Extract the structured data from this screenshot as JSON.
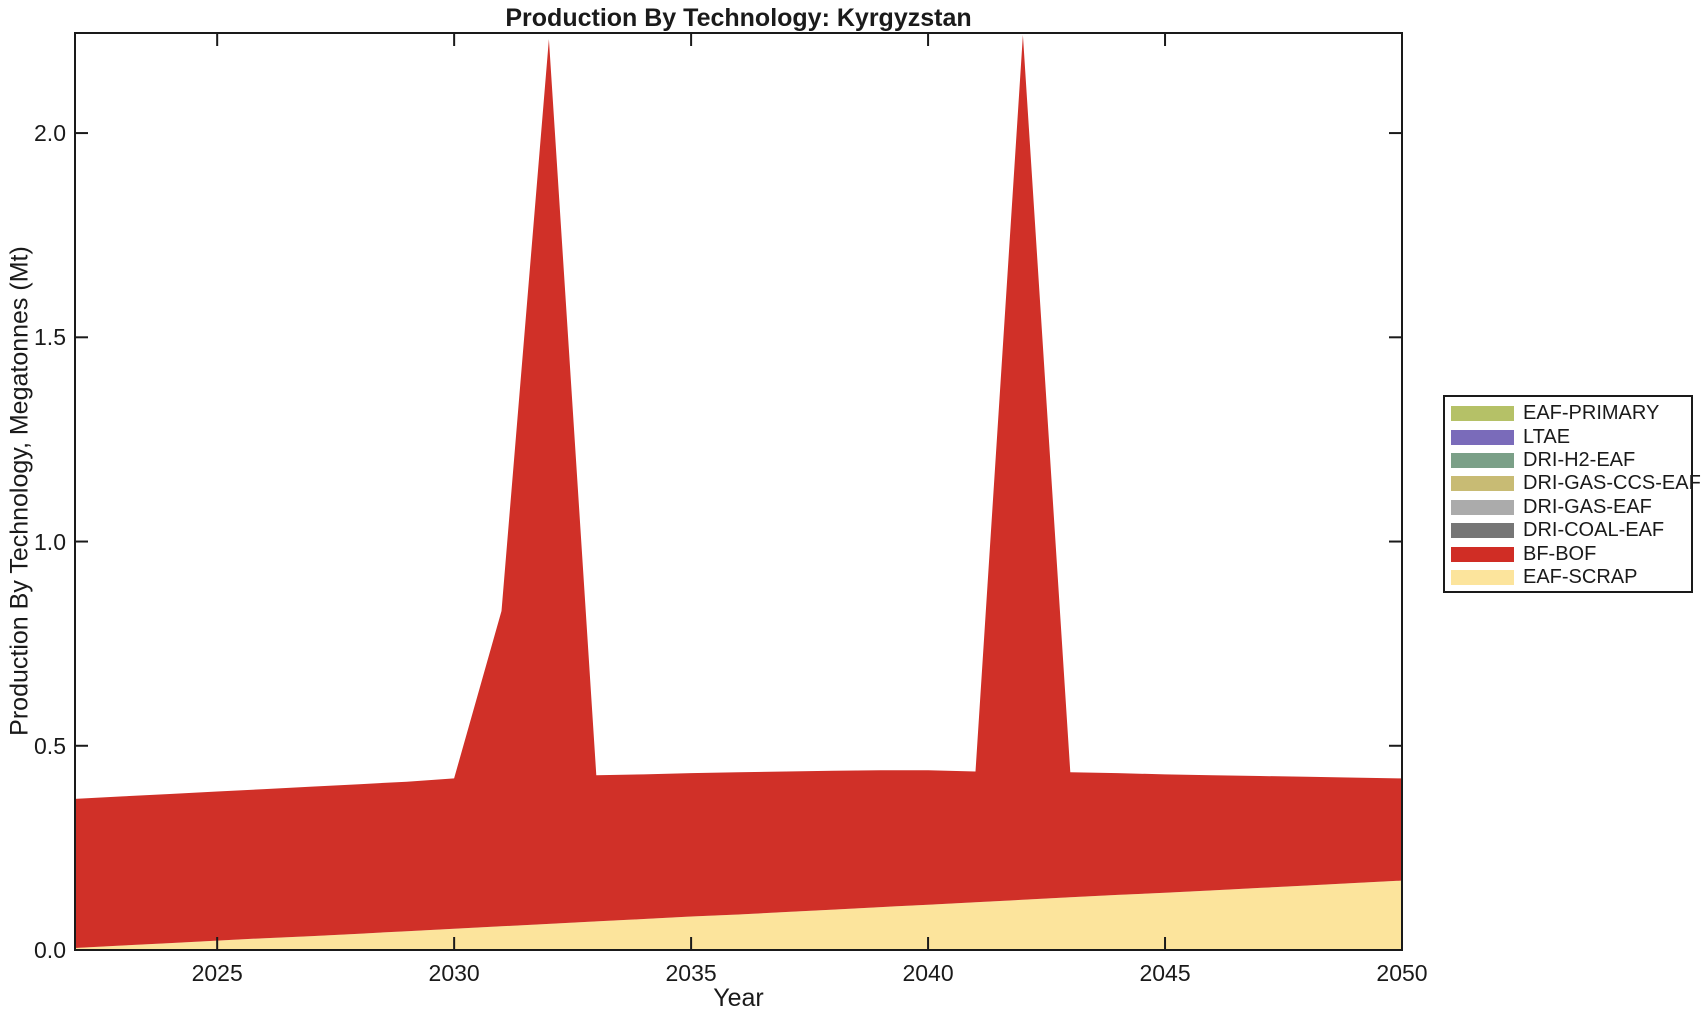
{
  "title": "Production By Technology: Kyrgyzstan",
  "axes": {
    "xlabel": "Year",
    "ylabel": "Production By Technology, Megatonnes (Mt)",
    "xlim": [
      2022,
      2050
    ],
    "ylim": [
      0,
      2.245
    ],
    "xticks": [
      {
        "v": 2025,
        "label": "2025"
      },
      {
        "v": 2030,
        "label": "2030"
      },
      {
        "v": 2035,
        "label": "2035"
      },
      {
        "v": 2040,
        "label": "2040"
      },
      {
        "v": 2045,
        "label": "2045"
      },
      {
        "v": 2050,
        "label": "2050"
      }
    ],
    "yticks": [
      {
        "v": 0.0,
        "label": "0.0"
      },
      {
        "v": 0.5,
        "label": "0.5"
      },
      {
        "v": 1.0,
        "label": "1.0"
      },
      {
        "v": 1.5,
        "label": "1.5"
      },
      {
        "v": 2.0,
        "label": "2.0"
      }
    ]
  },
  "legend": {
    "position": "right-outside",
    "entries": [
      {
        "label": "EAF-PRIMARY",
        "color": "#b5c167"
      },
      {
        "label": "LTAE",
        "color": "#7a6bba"
      },
      {
        "label": "DRI-H2-EAF",
        "color": "#7ba088"
      },
      {
        "label": "DRI-GAS-CCS-EAF",
        "color": "#c8bb74"
      },
      {
        "label": "DRI-GAS-EAF",
        "color": "#ababab"
      },
      {
        "label": "DRI-COAL-EAF",
        "color": "#767676"
      },
      {
        "label": "BF-BOF",
        "color": "#d02d25"
      },
      {
        "label": "EAF-SCRAP",
        "color": "#fce49c"
      }
    ]
  },
  "chart_data": {
    "type": "area",
    "stacked": true,
    "title": "Production By Technology: Kyrgyzstan",
    "xlabel": "Year",
    "ylabel": "Production By Technology, Megatonnes (Mt)",
    "xlim": [
      2022,
      2050
    ],
    "ylim": [
      0,
      2.245
    ],
    "grid": false,
    "legend_position": "right-outside",
    "x": [
      2022,
      2023,
      2024,
      2025,
      2026,
      2027,
      2028,
      2029,
      2030,
      2031,
      2032,
      2033,
      2034,
      2035,
      2036,
      2037,
      2038,
      2039,
      2040,
      2041,
      2042,
      2043,
      2044,
      2045,
      2046,
      2047,
      2048,
      2049,
      2050
    ],
    "series": [
      {
        "name": "EAF-SCRAP",
        "color": "#fce49c",
        "values": [
          0.005,
          0.011,
          0.017,
          0.023,
          0.029,
          0.034,
          0.04,
          0.046,
          0.052,
          0.058,
          0.064,
          0.07,
          0.076,
          0.082,
          0.087,
          0.093,
          0.099,
          0.105,
          0.111,
          0.117,
          0.123,
          0.129,
          0.135,
          0.14,
          0.146,
          0.152,
          0.158,
          0.164,
          0.17
        ]
      },
      {
        "name": "BF-BOF",
        "color": "#d03028",
        "values": [
          0.365,
          0.365,
          0.365,
          0.365,
          0.365,
          0.366,
          0.366,
          0.366,
          0.368,
          0.772,
          2.166,
          0.358,
          0.354,
          0.351,
          0.348,
          0.344,
          0.34,
          0.335,
          0.329,
          0.32,
          2.117,
          0.306,
          0.298,
          0.29,
          0.282,
          0.274,
          0.266,
          0.258,
          0.25
        ]
      },
      {
        "name": "DRI-COAL-EAF",
        "color": "#767676",
        "values": [
          0,
          0,
          0,
          0,
          0,
          0,
          0,
          0,
          0,
          0,
          0,
          0,
          0,
          0,
          0,
          0,
          0,
          0,
          0,
          0,
          0,
          0,
          0,
          0,
          0,
          0,
          0,
          0,
          0
        ]
      },
      {
        "name": "DRI-GAS-EAF",
        "color": "#ababab",
        "values": [
          0,
          0,
          0,
          0,
          0,
          0,
          0,
          0,
          0,
          0,
          0,
          0,
          0,
          0,
          0,
          0,
          0,
          0,
          0,
          0,
          0,
          0,
          0,
          0,
          0,
          0,
          0,
          0,
          0
        ]
      },
      {
        "name": "DRI-GAS-CCS-EAF",
        "color": "#c8bb74",
        "values": [
          0,
          0,
          0,
          0,
          0,
          0,
          0,
          0,
          0,
          0,
          0,
          0,
          0,
          0,
          0,
          0,
          0,
          0,
          0,
          0,
          0,
          0,
          0,
          0,
          0,
          0,
          0,
          0,
          0
        ]
      },
      {
        "name": "DRI-H2-EAF",
        "color": "#7ba088",
        "values": [
          0,
          0,
          0,
          0,
          0,
          0,
          0,
          0,
          0,
          0,
          0,
          0,
          0,
          0,
          0,
          0,
          0,
          0,
          0,
          0,
          0,
          0,
          0,
          0,
          0,
          0,
          0,
          0,
          0
        ]
      },
      {
        "name": "LTAE",
        "color": "#7a6bba",
        "values": [
          0,
          0,
          0,
          0,
          0,
          0,
          0,
          0,
          0,
          0,
          0,
          0,
          0,
          0,
          0,
          0,
          0,
          0,
          0,
          0,
          0,
          0,
          0,
          0,
          0,
          0,
          0,
          0,
          0
        ]
      },
      {
        "name": "EAF-PRIMARY",
        "color": "#b5c167",
        "values": [
          0,
          0,
          0,
          0,
          0,
          0,
          0,
          0,
          0,
          0,
          0,
          0,
          0,
          0,
          0,
          0,
          0,
          0,
          0,
          0,
          0,
          0,
          0,
          0,
          0,
          0,
          0,
          0,
          0
        ]
      }
    ]
  },
  "style": {
    "axis_color": "#1a1a1a",
    "text_color": "#1a1a1a",
    "background": "#ffffff"
  }
}
